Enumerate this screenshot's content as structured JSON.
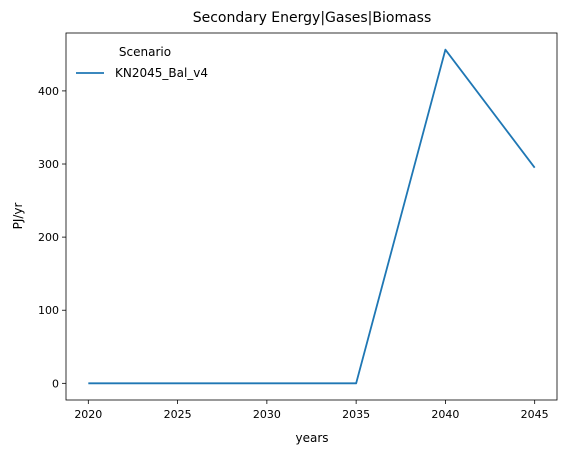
{
  "chart_data": {
    "type": "line",
    "title": "Secondary Energy|Gases|Biomass",
    "xlabel": "years",
    "ylabel": "PJ/yr",
    "xlim": [
      2018.75,
      2046.25
    ],
    "ylim": [
      -22.8,
      479.2
    ],
    "xticks": [
      2020,
      2025,
      2030,
      2035,
      2040,
      2045
    ],
    "yticks": [
      0,
      100,
      200,
      300,
      400
    ],
    "grid": false,
    "legend": {
      "title": "Scenario",
      "placement": "top-left"
    },
    "series": [
      {
        "name": "KN2045_Bal_v4",
        "color": "#1f77b4",
        "x": [
          2020,
          2025,
          2030,
          2035,
          2040,
          2045
        ],
        "y": [
          0,
          0,
          0,
          0,
          456.4,
          295
        ]
      }
    ]
  }
}
